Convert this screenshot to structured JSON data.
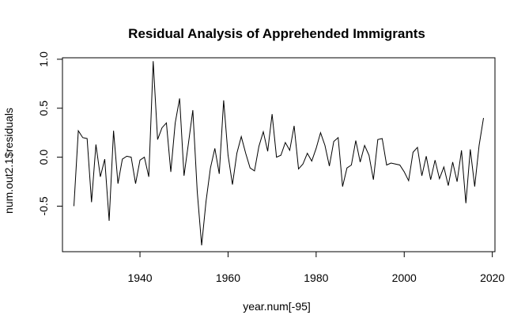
{
  "chart_data": {
    "type": "line",
    "title": "Residual Analysis of Apprehended Immigrants",
    "xlabel": "year.num[-95]",
    "ylabel": "num.out2.1$residuals",
    "xlim": [
      1922.4,
      2020.6
    ],
    "ylim": [
      -0.965,
      1.015
    ],
    "x_ticks": [
      1940,
      1960,
      1980,
      2000,
      2020
    ],
    "y_ticks": [
      -0.5,
      0.0,
      0.5,
      1.0
    ],
    "x_tick_labels": [
      "1940",
      "1960",
      "1980",
      "2000",
      "2020"
    ],
    "y_tick_labels": [
      "-0.5",
      "0.0",
      "0.5",
      "1.0"
    ],
    "grid": false,
    "series": [
      {
        "color": "#000000",
        "x": [
          1925,
          1926,
          1927,
          1928,
          1929,
          1930,
          1931,
          1932,
          1933,
          1934,
          1935,
          1936,
          1937,
          1938,
          1939,
          1940,
          1941,
          1942,
          1943,
          1944,
          1945,
          1946,
          1947,
          1948,
          1949,
          1950,
          1951,
          1952,
          1953,
          1954,
          1955,
          1956,
          1957,
          1958,
          1959,
          1960,
          1961,
          1962,
          1963,
          1964,
          1965,
          1966,
          1967,
          1968,
          1969,
          1970,
          1971,
          1972,
          1973,
          1974,
          1975,
          1976,
          1977,
          1978,
          1979,
          1980,
          1981,
          1982,
          1983,
          1984,
          1985,
          1986,
          1987,
          1988,
          1989,
          1990,
          1991,
          1992,
          1993,
          1994,
          1995,
          1996,
          1997,
          1998,
          1999,
          2000,
          2001,
          2002,
          2003,
          2004,
          2005,
          2006,
          2007,
          2008,
          2009,
          2010,
          2011,
          2012,
          2013,
          2014,
          2015,
          2016,
          2017,
          2018
        ],
        "y": [
          -0.5,
          0.27,
          0.2,
          0.19,
          -0.46,
          0.13,
          -0.2,
          -0.02,
          -0.65,
          0.27,
          -0.27,
          -0.02,
          0.01,
          0.0,
          -0.27,
          -0.03,
          0.0,
          -0.2,
          0.98,
          0.18,
          0.3,
          0.35,
          -0.15,
          0.35,
          0.6,
          -0.19,
          0.14,
          0.48,
          -0.35,
          -0.9,
          -0.45,
          -0.11,
          0.09,
          -0.17,
          0.58,
          0.02,
          -0.28,
          0.04,
          0.21,
          0.04,
          -0.11,
          -0.14,
          0.11,
          0.26,
          0.06,
          0.44,
          0.0,
          0.02,
          0.15,
          0.07,
          0.32,
          -0.12,
          -0.07,
          0.04,
          -0.04,
          0.09,
          0.25,
          0.12,
          -0.09,
          0.16,
          0.2,
          -0.3,
          -0.11,
          -0.08,
          0.17,
          -0.05,
          0.12,
          0.02,
          -0.23,
          0.18,
          0.19,
          -0.08,
          -0.06,
          -0.07,
          -0.08,
          -0.15,
          -0.24,
          0.05,
          0.1,
          -0.19,
          0.01,
          -0.23,
          -0.03,
          -0.22,
          -0.1,
          -0.29,
          -0.05,
          -0.25,
          0.07,
          -0.47,
          0.08,
          -0.3,
          0.12,
          0.4
        ]
      }
    ]
  }
}
